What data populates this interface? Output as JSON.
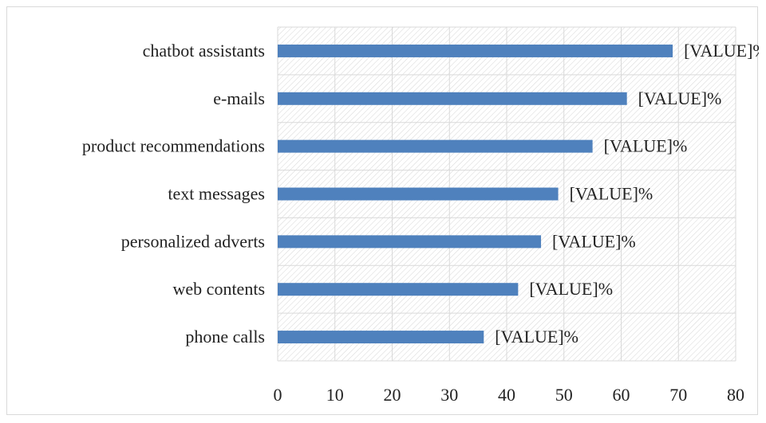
{
  "chart_data": {
    "type": "bar",
    "orientation": "horizontal",
    "categories": [
      "phone calls",
      "web contents",
      "personalized adverts",
      "text messages",
      "product recommendations",
      "e-mails",
      "chatbot assistants"
    ],
    "values": [
      36,
      42,
      46,
      49,
      55,
      61,
      69
    ],
    "data_labels": [
      "[VALUE]%",
      "[VALUE]%",
      "[VALUE]%",
      "[VALUE]%",
      "[VALUE]%",
      "[VALUE]%",
      "[VALUE]%"
    ],
    "xlim": [
      0,
      80
    ],
    "x_ticks": [
      0,
      10,
      20,
      30,
      40,
      50,
      60,
      70,
      80
    ],
    "title": "",
    "xlabel": "",
    "ylabel": "",
    "grid": true,
    "legend": "none",
    "colors": {
      "bar": "#4f81bd",
      "grid": "#d9d9d9",
      "hatch": "#d6d6d6",
      "text": "#222222"
    }
  }
}
